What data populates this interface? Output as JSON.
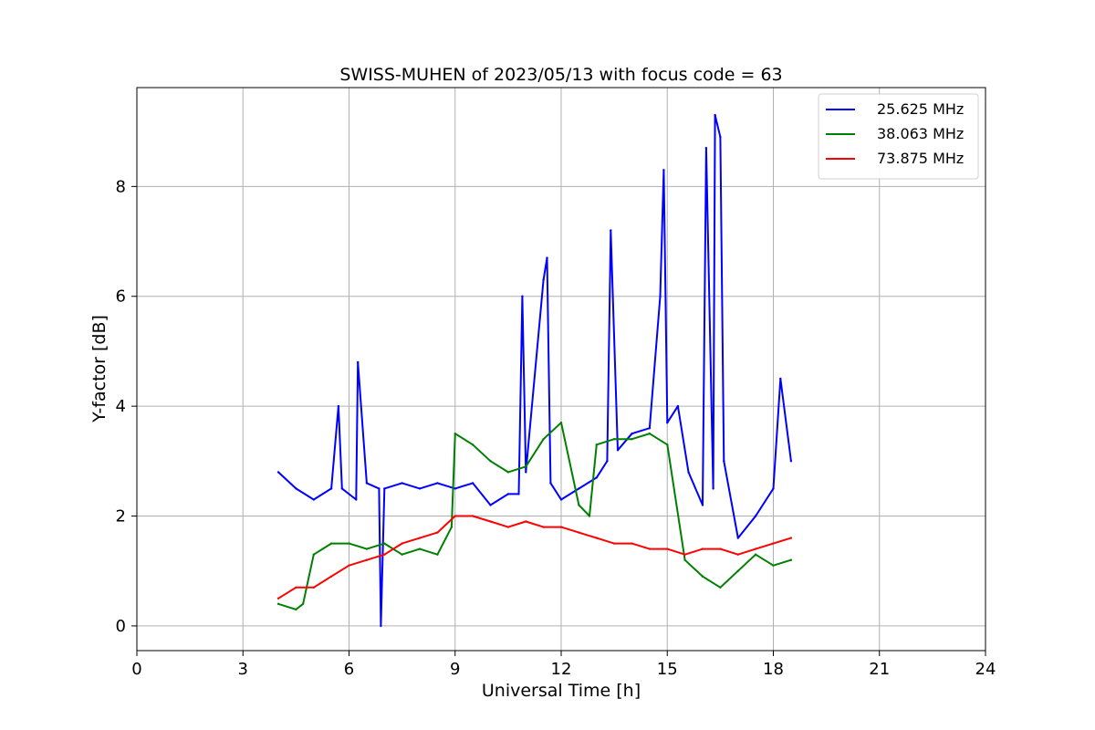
{
  "chart_data": {
    "type": "line",
    "title": "SWISS-MUHEN of 2023/05/13 with focus code = 63",
    "xlabel": "Universal Time [h]",
    "ylabel": "Y-factor [dB]",
    "xlim": [
      0,
      24
    ],
    "ylim": [
      -0.45,
      9.8
    ],
    "x_ticks": [
      0,
      3,
      6,
      9,
      12,
      15,
      18,
      21,
      24
    ],
    "y_ticks": [
      0,
      2,
      4,
      6,
      8
    ],
    "grid": true,
    "legend_position": "top-right",
    "series": [
      {
        "name": "25.625 MHz",
        "color": "#0000ff",
        "x": [
          4.0,
          4.5,
          5.0,
          5.5,
          5.7,
          5.8,
          6.2,
          6.25,
          6.5,
          6.85,
          6.9,
          7.0,
          7.5,
          8.0,
          8.5,
          9.0,
          9.5,
          10.0,
          10.5,
          10.8,
          10.9,
          11.0,
          11.5,
          11.6,
          11.7,
          12.0,
          12.5,
          13.0,
          13.3,
          13.4,
          13.6,
          14.0,
          14.5,
          14.8,
          14.9,
          15.0,
          15.3,
          15.6,
          16.0,
          16.1,
          16.3,
          16.35,
          16.5,
          16.6,
          17.0,
          17.5,
          18.0,
          18.2,
          18.5
        ],
        "values": [
          2.8,
          2.5,
          2.3,
          2.5,
          4.0,
          2.5,
          2.3,
          4.8,
          2.6,
          2.5,
          0.0,
          2.5,
          2.6,
          2.5,
          2.6,
          2.5,
          2.6,
          2.2,
          2.4,
          2.4,
          6.0,
          2.8,
          6.3,
          6.7,
          2.6,
          2.3,
          2.5,
          2.7,
          3.0,
          7.2,
          3.2,
          3.5,
          3.6,
          6.0,
          8.3,
          3.7,
          4.0,
          2.8,
          2.2,
          8.7,
          2.5,
          9.3,
          8.9,
          3.0,
          1.6,
          2.0,
          2.5,
          4.5,
          3.0
        ]
      },
      {
        "name": "38.063 MHz",
        "color": "#008000",
        "x": [
          4.0,
          4.5,
          4.7,
          5.0,
          5.5,
          6.0,
          6.5,
          7.0,
          7.5,
          8.0,
          8.5,
          8.9,
          9.0,
          9.5,
          10.0,
          10.5,
          11.0,
          11.5,
          12.0,
          12.5,
          12.8,
          13.0,
          13.5,
          14.0,
          14.5,
          15.0,
          15.5,
          16.0,
          16.5,
          17.0,
          17.5,
          18.0,
          18.5
        ],
        "values": [
          0.4,
          0.3,
          0.4,
          1.3,
          1.5,
          1.5,
          1.4,
          1.5,
          1.3,
          1.4,
          1.3,
          1.8,
          3.5,
          3.3,
          3.0,
          2.8,
          2.9,
          3.4,
          3.7,
          2.2,
          2.0,
          3.3,
          3.4,
          3.4,
          3.5,
          3.3,
          1.2,
          0.9,
          0.7,
          1.0,
          1.3,
          1.1,
          1.2
        ]
      },
      {
        "name": "73.875 MHz",
        "color": "#ff0000",
        "x": [
          4.0,
          4.5,
          5.0,
          5.5,
          6.0,
          6.5,
          7.0,
          7.5,
          8.0,
          8.5,
          9.0,
          9.5,
          10.0,
          10.5,
          11.0,
          11.5,
          12.0,
          12.5,
          13.0,
          13.5,
          14.0,
          14.5,
          15.0,
          15.5,
          16.0,
          16.5,
          17.0,
          17.5,
          18.0,
          18.5
        ],
        "values": [
          0.5,
          0.7,
          0.7,
          0.9,
          1.1,
          1.2,
          1.3,
          1.5,
          1.6,
          1.7,
          2.0,
          2.0,
          1.9,
          1.8,
          1.9,
          1.8,
          1.8,
          1.7,
          1.6,
          1.5,
          1.5,
          1.4,
          1.4,
          1.3,
          1.4,
          1.4,
          1.3,
          1.4,
          1.5,
          1.6
        ]
      }
    ]
  }
}
